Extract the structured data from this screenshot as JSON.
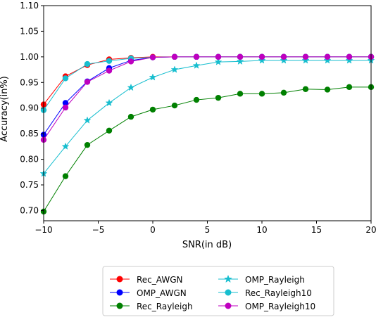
{
  "chart_data": {
    "type": "line",
    "title": "",
    "xlabel": "SNR(in dB)",
    "ylabel": "Accuracy(in%)",
    "xlim": [
      -10,
      20
    ],
    "ylim": [
      0.68,
      1.1
    ],
    "xticks": [
      -10,
      -5,
      0,
      5,
      10,
      15,
      20
    ],
    "xtick_labels": [
      "−10",
      "−5",
      "0",
      "5",
      "10",
      "15",
      "20"
    ],
    "yticks": [
      0.7,
      0.75,
      0.8,
      0.85,
      0.9,
      0.95,
      1.0,
      1.05,
      1.1
    ],
    "ytick_labels": [
      "0.70",
      "0.75",
      "0.80",
      "0.85",
      "0.90",
      "0.95",
      "1.00",
      "1.05",
      "1.10"
    ],
    "grid": false,
    "legend_position": "bottom-outside",
    "x": [
      -10,
      -8,
      -6,
      -4,
      -2,
      0,
      2,
      4,
      6,
      8,
      10,
      12,
      14,
      16,
      18,
      20
    ],
    "series": [
      {
        "name": "Rec_AWGN",
        "color": "#ff0000",
        "marker": "circle",
        "values": [
          0.907,
          0.962,
          0.984,
          0.995,
          0.998,
          1.0,
          1.0,
          1.0,
          1.0,
          1.0,
          1.0,
          1.0,
          1.0,
          1.0,
          1.0,
          1.0
        ]
      },
      {
        "name": "OMP_AWGN",
        "color": "#0000ff",
        "marker": "circle",
        "values": [
          0.848,
          0.91,
          0.952,
          0.978,
          0.993,
          0.999,
          1.0,
          1.0,
          1.0,
          1.0,
          1.0,
          1.0,
          1.0,
          1.0,
          1.0,
          1.0
        ]
      },
      {
        "name": "Rec_Rayleigh",
        "color": "#008000",
        "marker": "circle",
        "values": [
          0.698,
          0.767,
          0.828,
          0.856,
          0.883,
          0.897,
          0.905,
          0.916,
          0.92,
          0.928,
          0.928,
          0.93,
          0.937,
          0.936,
          0.941,
          0.941
        ]
      },
      {
        "name": "OMP_Rayleigh",
        "color": "#17becf",
        "marker": "star",
        "values": [
          0.772,
          0.825,
          0.876,
          0.91,
          0.94,
          0.96,
          0.975,
          0.983,
          0.99,
          0.991,
          0.993,
          0.993,
          0.993,
          0.993,
          0.993,
          0.993
        ]
      },
      {
        "name": "Rec_Rayleigh10",
        "color": "#17becf",
        "marker": "circle",
        "values": [
          0.896,
          0.958,
          0.986,
          0.992,
          0.997,
          0.999,
          1.0,
          1.0,
          1.0,
          1.0,
          1.0,
          1.0,
          1.0,
          1.0,
          1.0,
          1.0
        ]
      },
      {
        "name": "OMP_Rayleigh10",
        "color": "#bf00bf",
        "marker": "circle",
        "values": [
          0.838,
          0.901,
          0.951,
          0.973,
          0.991,
          0.999,
          1.0,
          1.0,
          1.0,
          1.0,
          1.0,
          1.0,
          1.0,
          1.0,
          1.0,
          1.0
        ]
      }
    ]
  }
}
